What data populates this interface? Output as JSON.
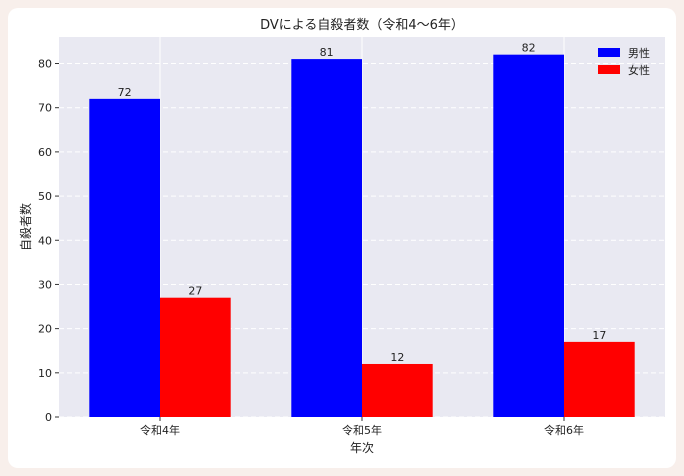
{
  "chart_data": {
    "type": "bar",
    "title": "DVによる自殺者数（令和4〜6年）",
    "xlabel": "年次",
    "ylabel": "自殺者数",
    "categories": [
      "令和4年",
      "令和5年",
      "令和6年"
    ],
    "series": [
      {
        "name": "男性",
        "values": [
          72,
          81,
          82
        ],
        "color": "#0000ff"
      },
      {
        "name": "女性",
        "values": [
          27,
          12,
          17
        ],
        "color": "#ff0000"
      }
    ],
    "ylim": [
      0,
      86
    ],
    "yticks": [
      0,
      10,
      20,
      30,
      40,
      50,
      60,
      70,
      80
    ],
    "grid": true,
    "legend_position": "top-right",
    "plot_background": "#e9e9f2"
  }
}
